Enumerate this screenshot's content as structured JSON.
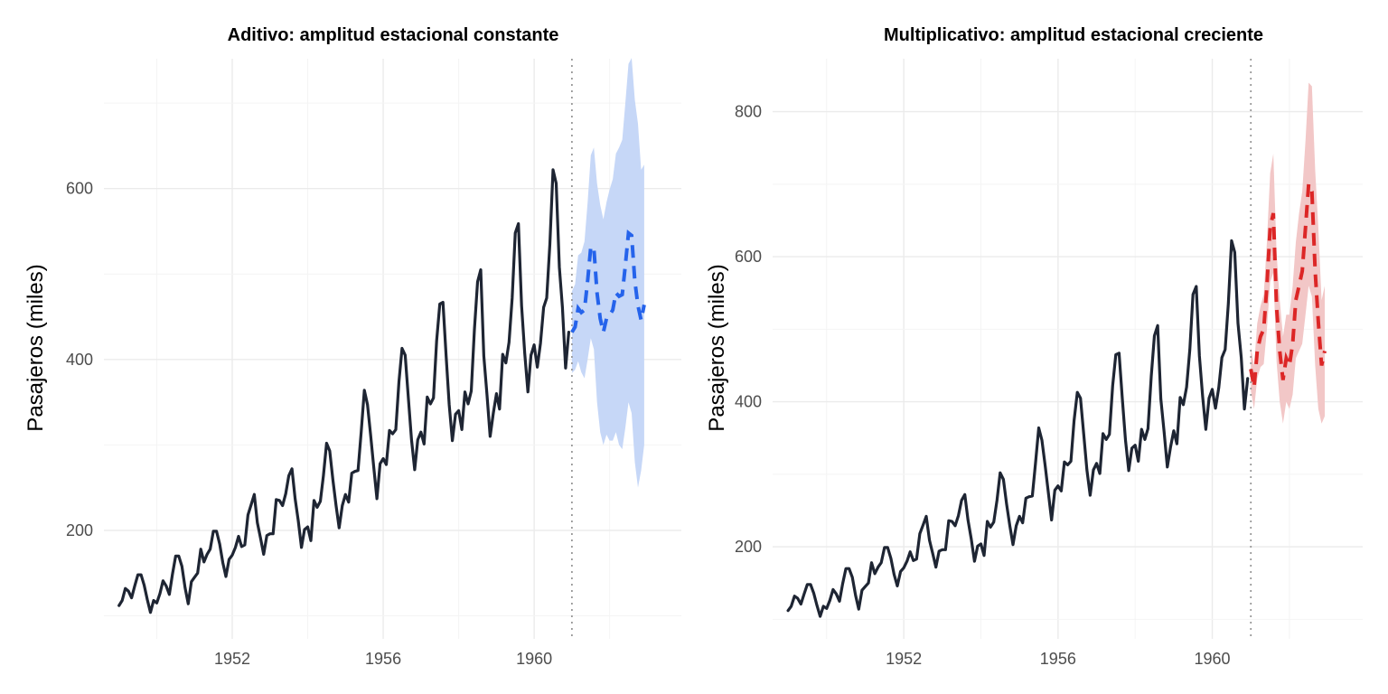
{
  "chart_data": [
    {
      "type": "line",
      "title": "Aditivo: amplitud estacional constante",
      "xlabel": "",
      "ylabel": "Pasajeros (miles)",
      "xlim": [
        1948.6,
        1963.9
      ],
      "ylim": [
        73,
        752
      ],
      "x_ticks": [
        1952,
        1956,
        1960
      ],
      "x_tick_labels": [
        "1952",
        "1956",
        "1960"
      ],
      "y_ticks": [
        200,
        400,
        600
      ],
      "y_tick_labels": [
        "200",
        "400",
        "600"
      ],
      "grid": true,
      "legend": "none",
      "forecast_start": 1961,
      "observed": {
        "start": 1949,
        "frequency": 12,
        "values": [
          112,
          118,
          132,
          129,
          121,
          135,
          148,
          148,
          136,
          119,
          104,
          118,
          115,
          126,
          141,
          135,
          125,
          149,
          170,
          170,
          158,
          133,
          114,
          140,
          145,
          150,
          178,
          163,
          172,
          178,
          199,
          199,
          184,
          162,
          146,
          166,
          171,
          180,
          193,
          181,
          183,
          218,
          230,
          242,
          209,
          191,
          172,
          194,
          196,
          196,
          236,
          235,
          229,
          243,
          264,
          272,
          237,
          211,
          180,
          201,
          204,
          188,
          235,
          227,
          234,
          264,
          302,
          293,
          259,
          229,
          203,
          229,
          242,
          233,
          267,
          269,
          270,
          315,
          364,
          347,
          312,
          274,
          237,
          278,
          284,
          277,
          317,
          313,
          318,
          374,
          413,
          405,
          355,
          306,
          271,
          306,
          315,
          301,
          356,
          348,
          355,
          422,
          465,
          467,
          404,
          347,
          305,
          336,
          340,
          318,
          362,
          348,
          363,
          435,
          491,
          505,
          404,
          359,
          310,
          337,
          360,
          342,
          406,
          396,
          420,
          472,
          548,
          559,
          463,
          407,
          362,
          405,
          417,
          391,
          419,
          461,
          472,
          535,
          622,
          606,
          508,
          461,
          390,
          432
        ]
      },
      "forecast": {
        "start": 1961,
        "frequency": 12,
        "values": [
          432,
          438,
          460,
          455,
          458,
          492,
          532,
          530,
          478,
          448,
          432,
          448,
          452,
          458,
          478,
          474,
          476,
          510,
          548,
          545,
          492,
          463,
          446,
          464
        ],
        "lower": [
          384,
          388,
          398,
          385,
          378,
          400,
          425,
          412,
          350,
          315,
          300,
          312,
          305,
          305,
          315,
          300,
          295,
          320,
          350,
          337,
          280,
          250,
          270,
          300
        ],
        "upper": [
          480,
          488,
          522,
          525,
          538,
          584,
          639,
          648,
          606,
          581,
          564,
          584,
          599,
          611,
          641,
          648,
          657,
          700,
          746,
          753,
          704,
          676,
          622,
          628
        ],
        "band_color": "#c6d7f7",
        "line_color": "#2563eb"
      }
    },
    {
      "type": "line",
      "title": "Multiplicativo: amplitud estacional creciente",
      "xlabel": "",
      "ylabel": "Pasajeros (miles)",
      "xlim": [
        1948.6,
        1963.9
      ],
      "ylim": [
        73,
        873
      ],
      "x_ticks": [
        1952,
        1956,
        1960
      ],
      "x_tick_labels": [
        "1952",
        "1956",
        "1960"
      ],
      "y_ticks": [
        200,
        400,
        600,
        800
      ],
      "y_tick_labels": [
        "200",
        "400",
        "600",
        "800"
      ],
      "grid": true,
      "legend": "none",
      "forecast_start": 1961,
      "forecast": {
        "start": 1961,
        "frequency": 12,
        "values": [
          445,
          420,
          470,
          490,
          500,
          560,
          640,
          660,
          530,
          470,
          430,
          460,
          450,
          480,
          540,
          560,
          580,
          640,
          700,
          690,
          580,
          510,
          450,
          470
        ],
        "lower": [
          415,
          390,
          432,
          448,
          452,
          500,
          565,
          578,
          455,
          400,
          370,
          400,
          390,
          410,
          460,
          470,
          480,
          520,
          560,
          545,
          450,
          390,
          370,
          380
        ],
        "upper": [
          475,
          450,
          508,
          532,
          548,
          620,
          715,
          742,
          605,
          540,
          490,
          520,
          520,
          560,
          620,
          660,
          690,
          760,
          840,
          835,
          720,
          640,
          540,
          560
        ],
        "band_color": "#f2c7c7",
        "line_color": "#dc2626"
      }
    }
  ]
}
